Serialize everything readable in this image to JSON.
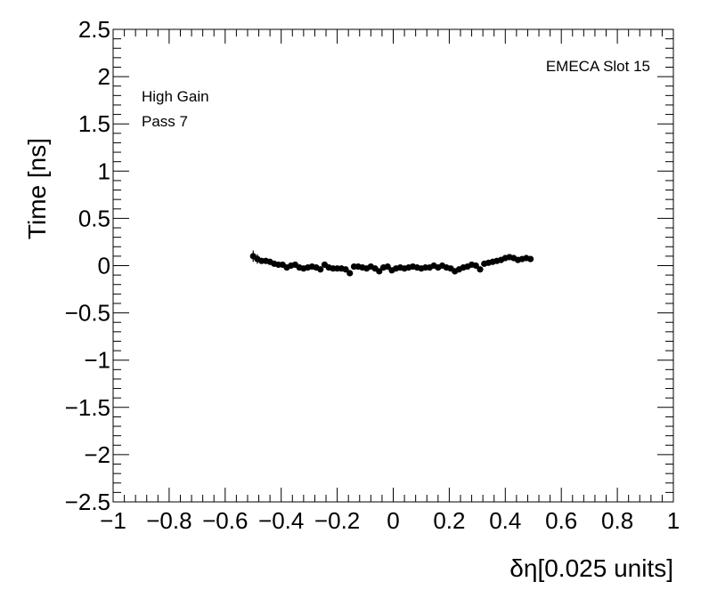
{
  "chart_data": {
    "type": "scatter",
    "xlabel": "δη[0.025 units]",
    "ylabel": "Time [ns]",
    "xlim": [
      -1,
      1
    ],
    "ylim": [
      -2.5,
      2.5
    ],
    "x_ticks": [
      -1,
      -0.8,
      -0.6,
      -0.4,
      -0.2,
      0,
      0.2,
      0.4,
      0.6,
      0.8,
      1
    ],
    "x_tick_labels": [
      "−1",
      "−0.8",
      "−0.6",
      "−0.4",
      "−0.2",
      "0",
      "0.2",
      "0.4",
      "0.6",
      "0.8",
      "1"
    ],
    "y_ticks": [
      -2.5,
      -2,
      -1.5,
      -1,
      -0.5,
      0,
      0.5,
      1,
      1.5,
      2,
      2.5
    ],
    "y_tick_labels": [
      "−2.5",
      "−2",
      "−1.5",
      "−1",
      "−0.5",
      "0",
      "0.5",
      "1",
      "1.5",
      "2",
      "2.5"
    ],
    "grid": false,
    "marker_color": "#000000",
    "annotations": {
      "top_right": "EMECA Slot 15",
      "top_left": [
        "High Gain",
        "Pass 7"
      ]
    },
    "series": [
      {
        "x": [
          -0.5,
          -0.485,
          -0.47,
          -0.455,
          -0.44,
          -0.425,
          -0.41,
          -0.395,
          -0.38,
          -0.365,
          -0.35,
          -0.335,
          -0.32,
          -0.305,
          -0.29,
          -0.275,
          -0.26,
          -0.245,
          -0.23,
          -0.215,
          -0.2,
          -0.185,
          -0.17,
          -0.155,
          -0.14,
          -0.125,
          -0.11,
          -0.095,
          -0.08,
          -0.065,
          -0.05,
          -0.035,
          -0.02,
          -0.005,
          0.01,
          0.025,
          0.04,
          0.055,
          0.07,
          0.085,
          0.1,
          0.115,
          0.13,
          0.145,
          0.16,
          0.175,
          0.19,
          0.205,
          0.22,
          0.235,
          0.25,
          0.265,
          0.28,
          0.295,
          0.31,
          0.325,
          0.34,
          0.355,
          0.37,
          0.385,
          0.4,
          0.415,
          0.43,
          0.445,
          0.46,
          0.475,
          0.49
        ],
        "y": [
          0.1,
          0.07,
          0.05,
          0.05,
          0.04,
          0.02,
          0.01,
          0.01,
          -0.02,
          0.0,
          0.01,
          -0.02,
          -0.03,
          -0.02,
          -0.01,
          -0.02,
          -0.04,
          0.01,
          -0.02,
          -0.03,
          -0.03,
          -0.03,
          -0.04,
          -0.08,
          -0.01,
          -0.01,
          -0.02,
          -0.03,
          -0.01,
          -0.03,
          -0.06,
          -0.02,
          -0.01,
          -0.05,
          -0.03,
          -0.02,
          -0.03,
          -0.02,
          -0.01,
          -0.02,
          -0.03,
          -0.02,
          -0.02,
          0.0,
          -0.02,
          0.0,
          -0.02,
          -0.03,
          -0.06,
          -0.04,
          -0.02,
          -0.01,
          0.01,
          0.0,
          -0.04,
          0.02,
          0.03,
          0.04,
          0.05,
          0.06,
          0.08,
          0.09,
          0.08,
          0.06,
          0.07,
          0.08,
          0.07
        ],
        "y_err": [
          0.06,
          0.05,
          0.03,
          0.03,
          0.03,
          0.02,
          0.02,
          0.02,
          0.02,
          0.02,
          0.02,
          0.02,
          0.02,
          0.02,
          0.02,
          0.02,
          0.02,
          0.02,
          0.02,
          0.02,
          0.02,
          0.02,
          0.02,
          0.02,
          0.02,
          0.02,
          0.02,
          0.02,
          0.02,
          0.02,
          0.02,
          0.02,
          0.02,
          0.02,
          0.02,
          0.02,
          0.02,
          0.02,
          0.02,
          0.02,
          0.02,
          0.02,
          0.02,
          0.02,
          0.02,
          0.02,
          0.02,
          0.02,
          0.02,
          0.02,
          0.02,
          0.02,
          0.02,
          0.02,
          0.02,
          0.02,
          0.02,
          0.02,
          0.02,
          0.02,
          0.02,
          0.02,
          0.02,
          0.02,
          0.02,
          0.02,
          0.03
        ]
      }
    ]
  }
}
